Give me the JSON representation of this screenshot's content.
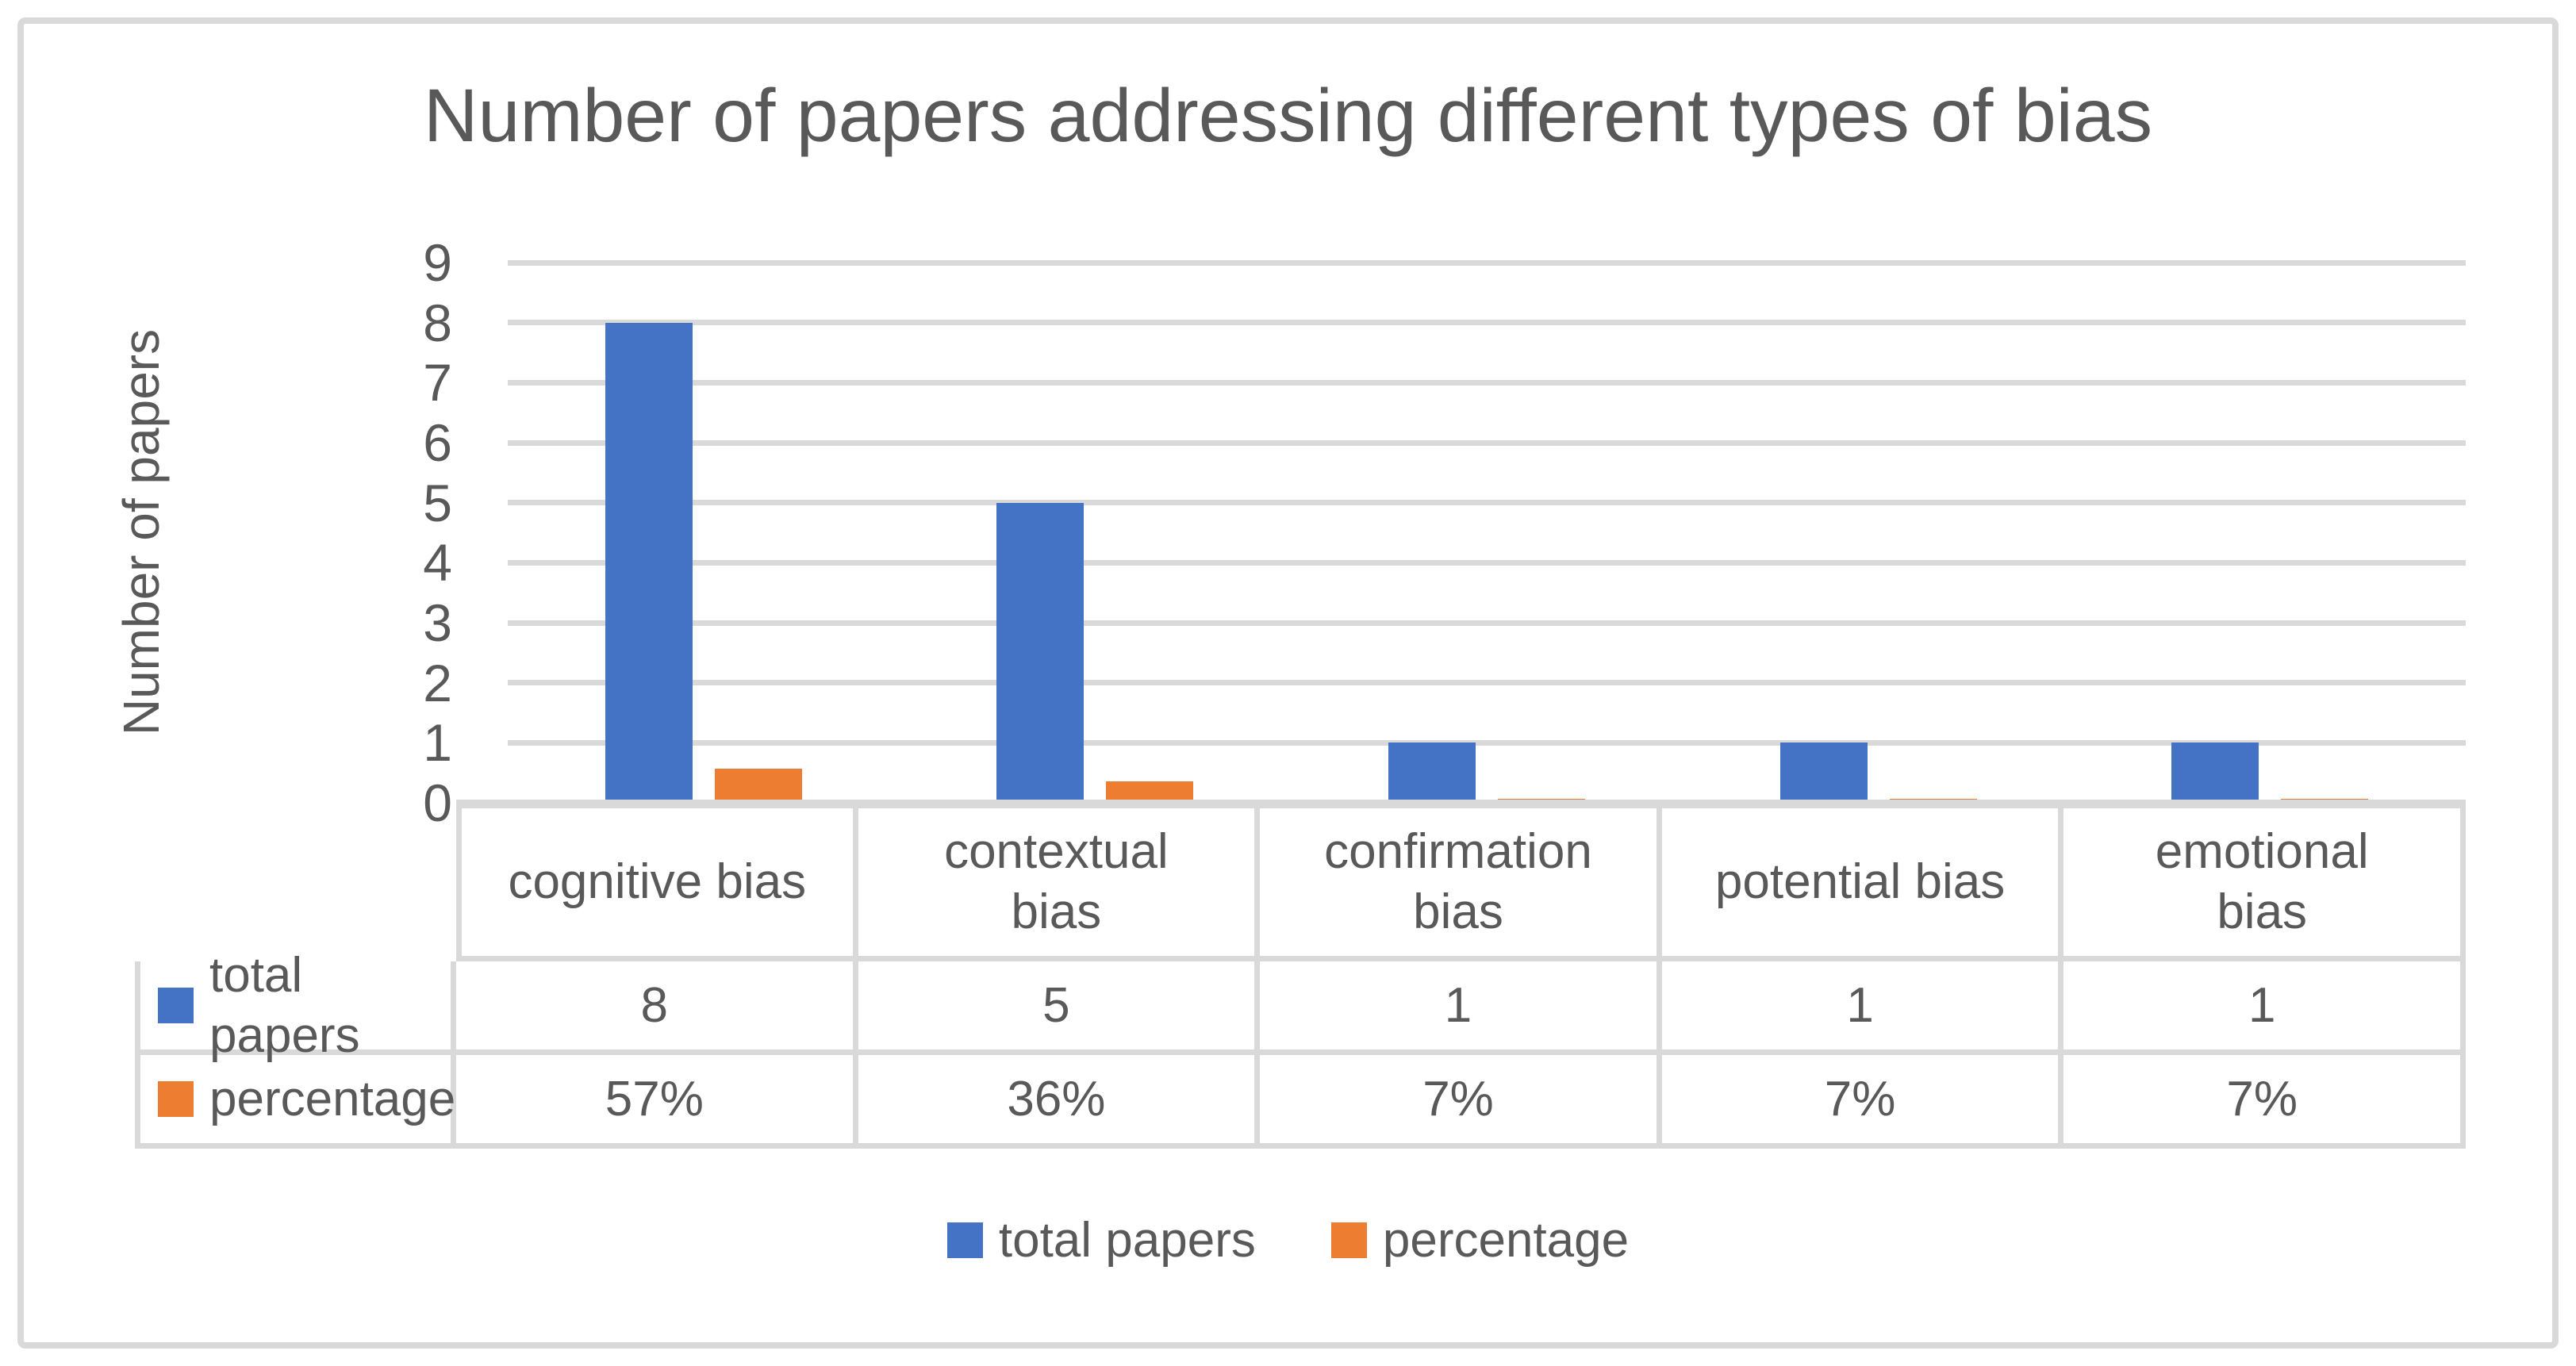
{
  "title": "Number of papers addressing different types of bias",
  "y_axis": {
    "label": "Number of papers",
    "tick_labels": [
      "9",
      "8",
      "7",
      "6",
      "5",
      "4",
      "3",
      "2",
      "1",
      "0"
    ],
    "min": 0,
    "max": 9
  },
  "colors": {
    "series_total_papers": "#4472C4",
    "series_percentage": "#ED7D31",
    "gridline": "#D9D9D9",
    "table_border": "#D9D9D9",
    "text": "#595959",
    "frame_border": "#D9D9D9",
    "background": "#FFFFFF"
  },
  "chart_data": {
    "type": "bar",
    "title": "Number of papers addressing different types of bias",
    "categories": [
      "cognitive bias",
      "contextual bias",
      "confirmation bias",
      "potential bias",
      "emotional bias"
    ],
    "category_lines": [
      [
        "cognitive bias"
      ],
      [
        "contextual",
        "bias"
      ],
      [
        "confirmation",
        "bias"
      ],
      [
        "potential bias"
      ],
      [
        "emotional",
        "bias"
      ]
    ],
    "series": [
      {
        "name": "total papers",
        "color": "#4472C4",
        "values": [
          8,
          5,
          1,
          1,
          1
        ],
        "labels": [
          "8",
          "5",
          "1",
          "1",
          "1"
        ]
      },
      {
        "name": "percentage",
        "color": "#ED7D31",
        "values": [
          0.57,
          0.36,
          0.07,
          0.07,
          0.07
        ],
        "labels": [
          "57%",
          "36%",
          "7%",
          "7%",
          "7%"
        ]
      }
    ],
    "xlabel": "",
    "ylabel": "Number of papers",
    "ylim": [
      0,
      9
    ],
    "grid": true,
    "legend_position": "bottom",
    "data_table": {
      "rows": [
        {
          "label": "total papers",
          "values": [
            "8",
            "5",
            "1",
            "1",
            "1"
          ]
        },
        {
          "label": "percentage",
          "values": [
            "57%",
            "36%",
            "7%",
            "7%",
            "7%"
          ]
        }
      ]
    }
  }
}
